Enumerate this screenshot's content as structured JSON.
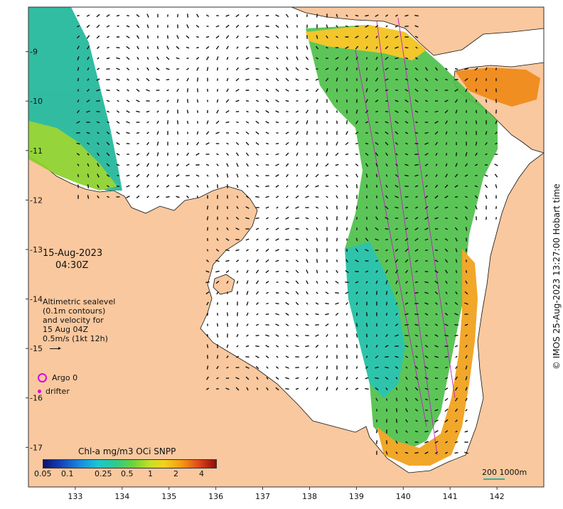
{
  "map": {
    "lon_ticks": [
      "133",
      "134",
      "135",
      "136",
      "137",
      "138",
      "139",
      "140",
      "141",
      "142"
    ],
    "lat_ticks": [
      "-9",
      "-10",
      "-11",
      "-12",
      "-13",
      "-14",
      "-15",
      "-16",
      "-17"
    ],
    "lon_range": [
      132.0,
      143.0
    ],
    "lat_range": [
      -17.8,
      -8.1
    ],
    "land_color": "#f9c89e",
    "contour_color": "#111111",
    "track_color": "#c020c0"
  },
  "annotations": {
    "date": "15-Aug-2023",
    "time": "04:30Z",
    "altimetry_lines": [
      "Altimetric sealevel",
      "(0.1m contours)",
      "and velocity for",
      "15 Aug 04Z",
      "0.5m/s (1kt 12h)"
    ],
    "argo_label": "Argo 0",
    "drifter_label": "drifter",
    "colorbar_title": "Chl-a mg/m3 OCi SNPP",
    "colorbar_ticks": [
      "0.05",
      "0.1",
      "0.25",
      "0.5",
      "1",
      "2",
      "4"
    ],
    "credit": "© IMOS 25-Aug-2023 13:27:00 Hobart time",
    "scalebar": "200  1000m"
  }
}
